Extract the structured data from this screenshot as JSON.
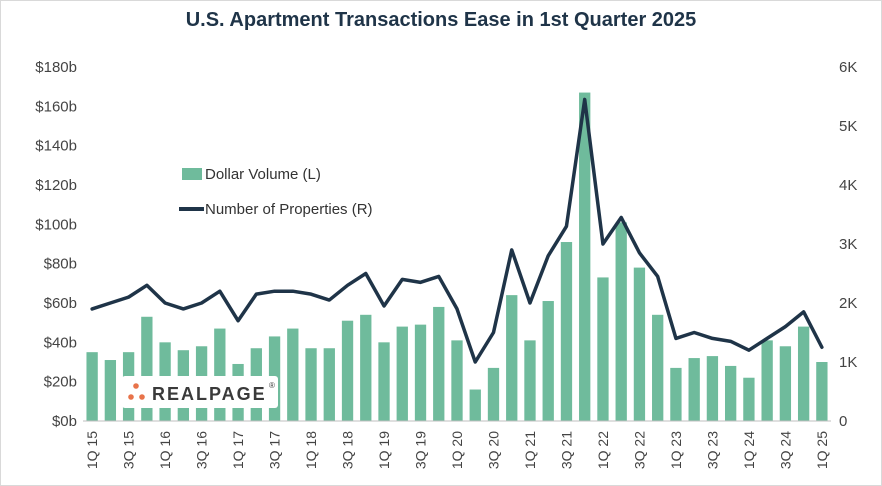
{
  "chart_data": {
    "type": "bar+line",
    "title": "U.S. Apartment Transactions Ease in 1st Quarter 2025",
    "categories": [
      "1Q 15",
      "2Q 15",
      "3Q 15",
      "4Q 15",
      "1Q 16",
      "2Q 16",
      "3Q 16",
      "4Q 16",
      "1Q 17",
      "2Q 17",
      "3Q 17",
      "4Q 17",
      "1Q 18",
      "2Q 18",
      "3Q 18",
      "4Q 18",
      "1Q 19",
      "2Q 19",
      "3Q 19",
      "4Q 19",
      "1Q 20",
      "2Q 20",
      "3Q 20",
      "4Q 20",
      "1Q 21",
      "2Q 21",
      "3Q 21",
      "4Q 21",
      "1Q 22",
      "2Q 22",
      "3Q 22",
      "4Q 22",
      "1Q 23",
      "2Q 23",
      "3Q 23",
      "4Q 23",
      "1Q 24",
      "2Q 24",
      "3Q 24",
      "4Q 24",
      "1Q 25"
    ],
    "x_tick_labels": [
      "1Q 15",
      "3Q 15",
      "1Q 16",
      "3Q 16",
      "1Q 17",
      "3Q 17",
      "1Q 18",
      "3Q 18",
      "1Q 19",
      "3Q 19",
      "1Q 20",
      "3Q 20",
      "1Q 21",
      "3Q 21",
      "1Q 22",
      "3Q 22",
      "1Q 23",
      "3Q 23",
      "1Q 24",
      "3Q 24",
      "1Q 25"
    ],
    "series": [
      {
        "name": "Dollar Volume (L)",
        "type": "bar",
        "axis": "left",
        "color": "#6fbb9c",
        "values": [
          35,
          31,
          35,
          53,
          40,
          36,
          38,
          47,
          29,
          37,
          43,
          47,
          37,
          37,
          51,
          54,
          40,
          48,
          49,
          58,
          41,
          16,
          27,
          64,
          41,
          61,
          91,
          167,
          73,
          101,
          78,
          54,
          27,
          32,
          33,
          28,
          22,
          41,
          38,
          48,
          30
        ]
      },
      {
        "name": "Number of Properties (R)",
        "type": "line",
        "axis": "right",
        "color": "#1f3448",
        "values": [
          1.9,
          2.0,
          2.1,
          2.3,
          2.0,
          1.9,
          2.0,
          2.2,
          1.7,
          2.15,
          2.2,
          2.2,
          2.15,
          2.05,
          2.3,
          2.5,
          1.95,
          2.4,
          2.35,
          2.45,
          1.9,
          1.0,
          1.5,
          2.9,
          2.0,
          2.8,
          3.3,
          5.45,
          3.0,
          3.45,
          2.85,
          2.45,
          1.4,
          1.5,
          1.4,
          1.35,
          1.2,
          1.4,
          1.6,
          1.85,
          1.25
        ]
      }
    ],
    "y_left": {
      "ticks": [
        "$0b",
        "$20b",
        "$40b",
        "$60b",
        "$80b",
        "$100b",
        "$120b",
        "$140b",
        "$160b",
        "$180b"
      ],
      "ylim": [
        0,
        180
      ]
    },
    "y_right": {
      "ticks": [
        "0",
        "1K",
        "2K",
        "3K",
        "4K",
        "5K",
        "6K"
      ],
      "ylim": [
        0,
        6
      ]
    },
    "legend_placement": "upper-left",
    "grid": false
  },
  "logo": {
    "text": "REALPAGE",
    "trademark": "®",
    "dot_color": "#e8734a"
  }
}
